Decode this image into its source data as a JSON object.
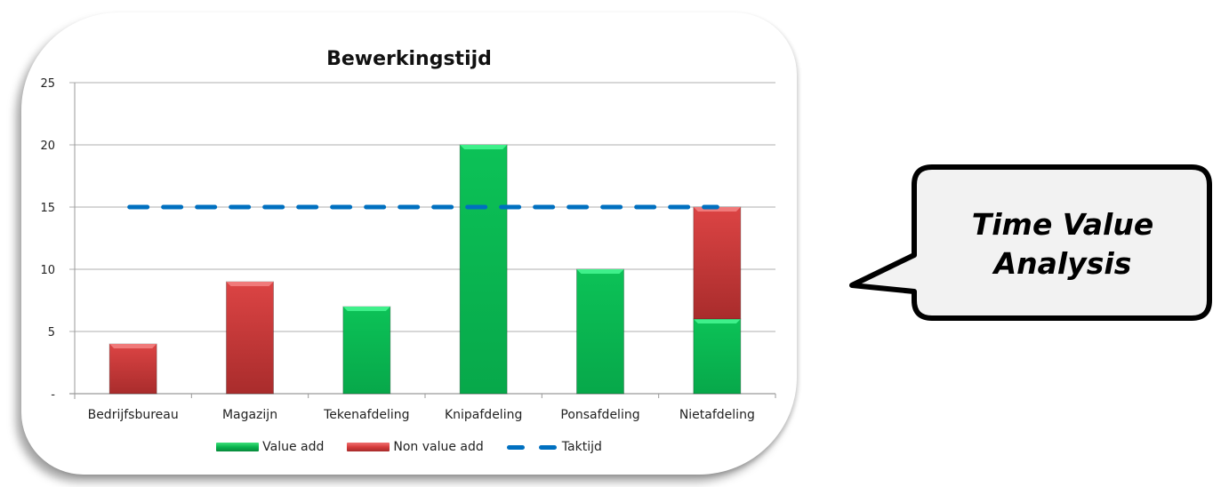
{
  "chart": {
    "title": "Bewerkingstijd",
    "y_ticks": [
      "-",
      "5",
      "10",
      "15",
      "20",
      "25"
    ],
    "categories": [
      "Bedrijfsbureau",
      "Magazijn",
      "Tekenafdeling",
      "Knipafdeling",
      "Ponsafdeling",
      "Nietafdeling"
    ],
    "legend": {
      "value_add": "Value add",
      "non_value_add": "Non value add",
      "taktijd": "Taktijd"
    }
  },
  "callout": {
    "line1": "Time Value",
    "line2": "Analysis"
  },
  "colors": {
    "value_add": "#09b44e",
    "non_value_add": "#d63c3c",
    "taktijd": "#0070c0",
    "gridline": "#bfbfbf",
    "callout_fill": "#f2f2f2",
    "callout_border": "#000000"
  },
  "chart_data": {
    "type": "bar",
    "stacked": true,
    "title": "Bewerkingstijd",
    "xlabel": "",
    "ylabel": "",
    "ylim": [
      0,
      25
    ],
    "y_ticks": [
      0,
      5,
      10,
      15,
      20,
      25
    ],
    "grid": true,
    "legend_position": "bottom",
    "categories": [
      "Bedrijfsbureau",
      "Magazijn",
      "Tekenafdeling",
      "Knipafdeling",
      "Ponsafdeling",
      "Nietafdeling"
    ],
    "series": [
      {
        "name": "Value add",
        "type": "bar",
        "values": [
          0,
          0,
          7,
          20,
          10,
          6
        ]
      },
      {
        "name": "Non value add",
        "type": "bar",
        "values": [
          4,
          9,
          0,
          0,
          0,
          9
        ]
      },
      {
        "name": "Taktijd",
        "type": "line",
        "style": "dashed",
        "values": [
          15,
          15,
          15,
          15,
          15,
          15
        ]
      }
    ]
  }
}
